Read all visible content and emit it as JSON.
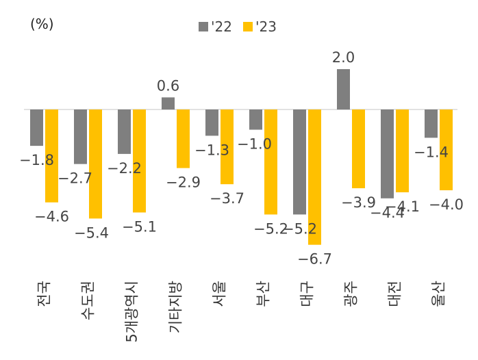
{
  "chart_data": {
    "type": "bar",
    "unit_label": "(%)",
    "categories": [
      "전국",
      "수도권",
      "5개광역시",
      "기타지방",
      "서울",
      "부산",
      "대구",
      "광주",
      "대전",
      "울산"
    ],
    "series": [
      {
        "name": "'22",
        "color": "#7f7f7f",
        "values": [
          -1.8,
          -2.7,
          -2.2,
          0.6,
          -1.3,
          -1.0,
          -5.2,
          2.0,
          -4.4,
          -1.4
        ]
      },
      {
        "name": "'23",
        "color": "#ffc000",
        "values": [
          -4.6,
          -5.4,
          -5.1,
          -2.9,
          -3.7,
          -5.2,
          -6.7,
          -3.9,
          -4.1,
          -4.0
        ]
      }
    ],
    "value_labels": [
      [
        "−1.8",
        "−2.7",
        "−2.2",
        "0.6",
        "−1.3",
        "−1.0",
        "−5.2",
        "2.0",
        "−4.4",
        "−1.4"
      ],
      [
        "−4.6",
        "−5.4",
        "−5.1",
        "−2.9",
        "−3.7",
        "−5.2",
        "−6.7",
        "−3.9",
        "−4.1",
        "−4.0"
      ]
    ],
    "ylim": [
      -6.7,
      2.0
    ],
    "legend_position": "top-center",
    "grid": false
  }
}
